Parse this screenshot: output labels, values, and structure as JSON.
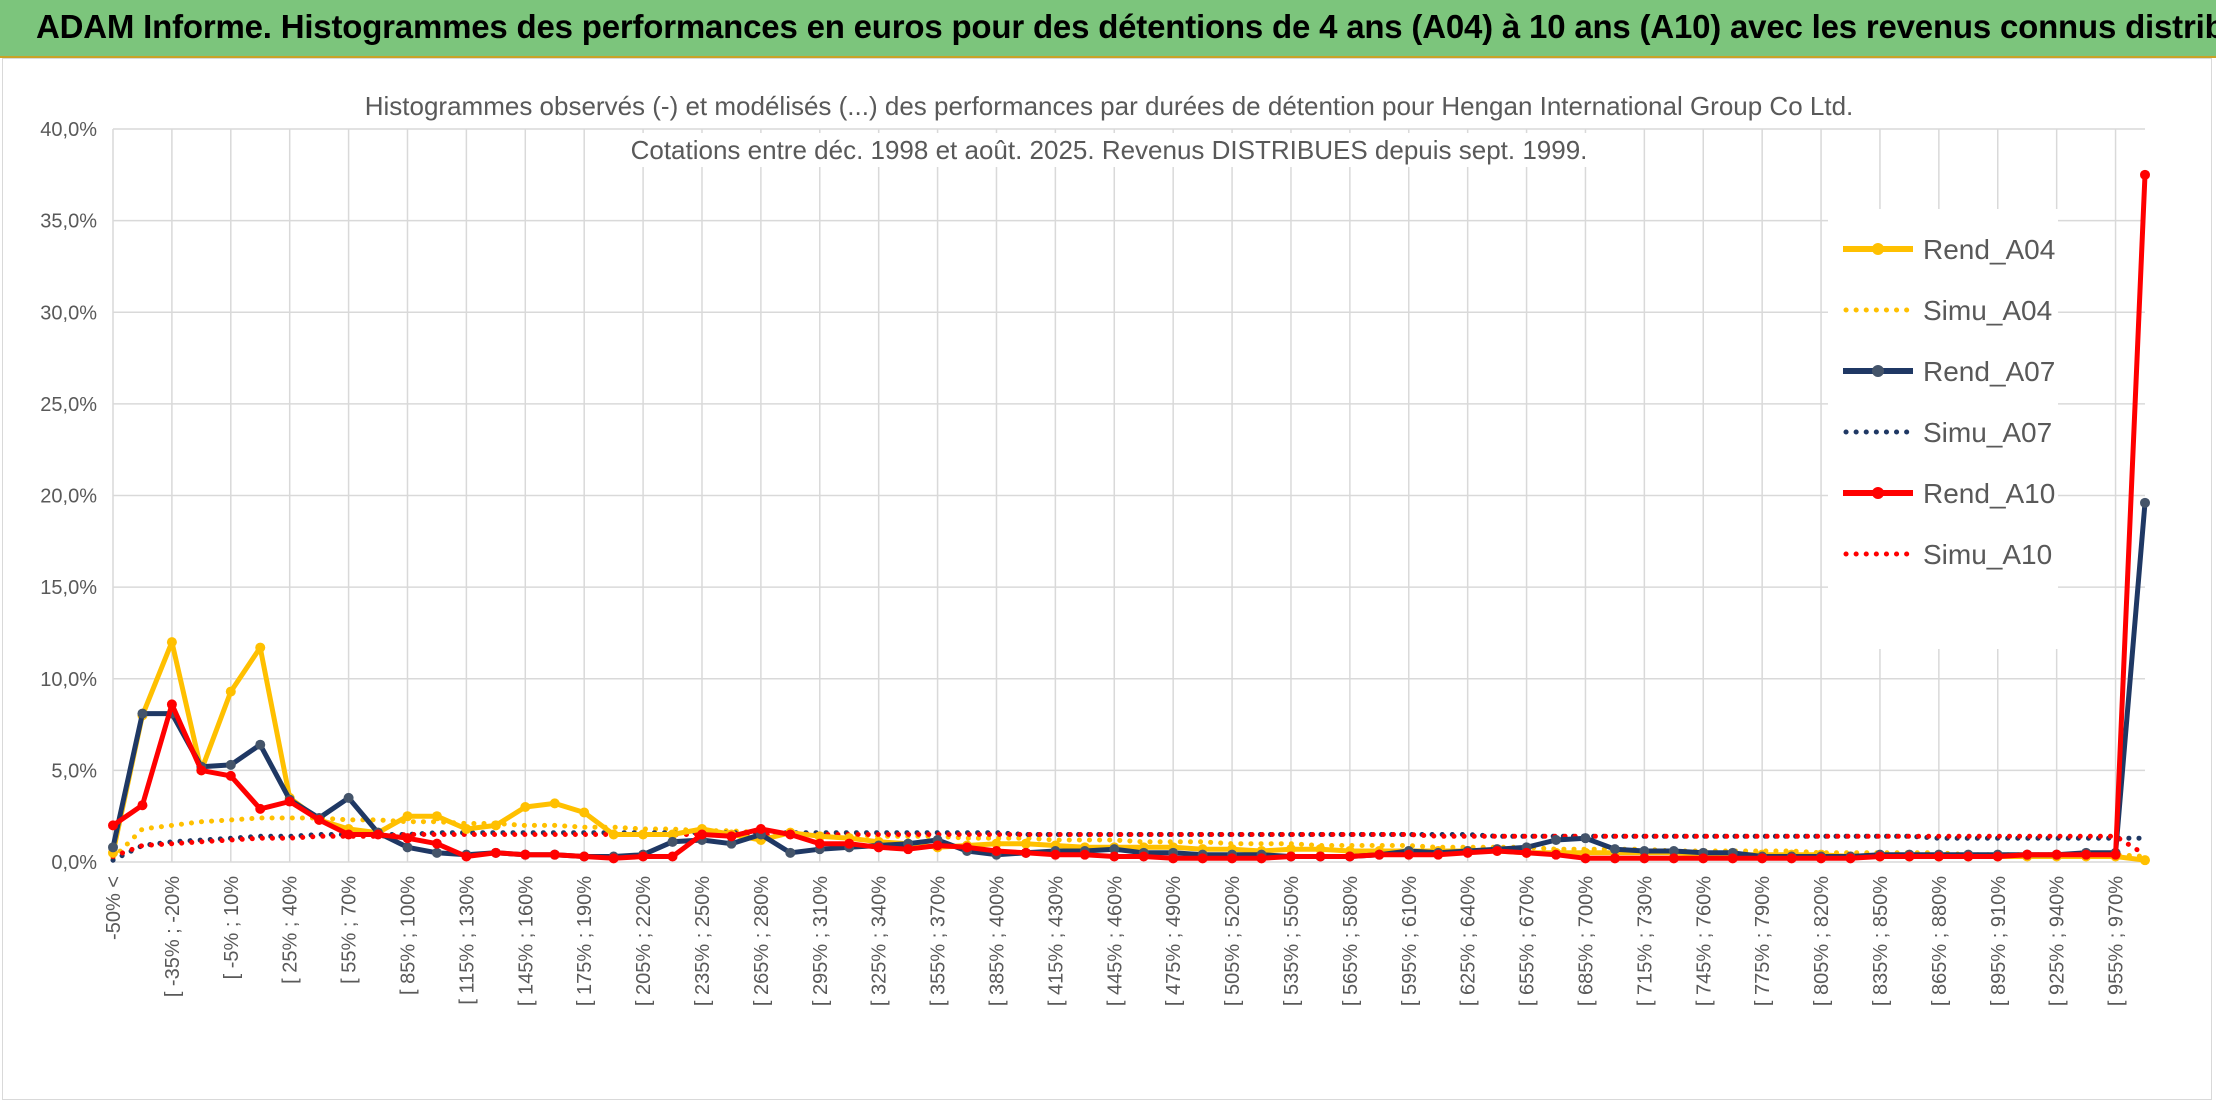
{
  "banner": {
    "title": "ADAM Informe. Histogrammes des performances en euros pour des détentions de 4 ans (A04) à 10 ans (A10) avec les revenus connus distribués"
  },
  "chart_data": {
    "type": "line",
    "title": "Histogrammes observés (-) et modélisés (...) des performances par durées de détention pour Hengan International Group Co Ltd.",
    "subtitle": "Cotations entre déc. 1998 et août. 2025. Revenus DISTRIBUES depuis sept. 1999.",
    "xlabel": "",
    "ylabel": "",
    "ylim": [
      0,
      40
    ],
    "yticks": [
      "0,0%",
      "5,0%",
      "10,0%",
      "15,0%",
      "20,0%",
      "25,0%",
      "30,0%",
      "35,0%",
      "40,0%"
    ],
    "x_tick_labels": [
      "-50% <",
      "[ -35% ; -20%",
      "[ -5% ; 10%",
      "[ 25% ; 40%",
      "[ 55% ; 70%",
      "[ 85% ; 100%",
      "[ 115% ; 130%",
      "[ 145% ; 160%",
      "[ 175% ; 190%",
      "[ 205% ; 220%",
      "[ 235% ; 250%",
      "[ 265% ; 280%",
      "[ 295% ; 310%",
      "[ 325% ; 340%",
      "[ 355% ; 370%",
      "[ 385% ; 400%",
      "[ 415% ; 430%",
      "[ 445% ; 460%",
      "[ 475% ; 490%",
      "[ 505% ; 520%",
      "[ 535% ; 550%",
      "[ 565% ; 580%",
      "[ 595% ; 610%",
      "[ 625% ; 640%",
      "[ 655% ; 670%",
      "[ 685% ; 700%",
      "[ 715% ; 730%",
      "[ 745% ; 760%",
      "[ 775% ; 790%",
      "[ 805% ; 820%",
      "[ 835% ; 850%",
      "[ 865% ; 880%",
      "[ 895% ; 910%",
      "[ 925% ; 940%",
      "[ 955% ; 970%"
    ],
    "categories_count": 70,
    "grid": true,
    "legend_position": "right",
    "series": [
      {
        "name": "Rend_A04",
        "color": "#FFC000",
        "style": "solid",
        "values": [
          0.5,
          8.0,
          12.0,
          5.0,
          9.3,
          11.7,
          3.5,
          2.3,
          1.8,
          1.6,
          2.5,
          2.5,
          1.8,
          2.0,
          3.0,
          3.2,
          2.7,
          1.5,
          1.5,
          1.5,
          1.8,
          1.5,
          1.2,
          1.6,
          1.4,
          1.3,
          1.1,
          1.0,
          0.8,
          0.9,
          1.0,
          1.0,
          0.9,
          0.8,
          0.8,
          0.8,
          0.8,
          0.7,
          0.7,
          0.6,
          0.7,
          0.7,
          0.6,
          0.6,
          0.6,
          0.6,
          0.6,
          0.6,
          0.5,
          0.5,
          0.5,
          0.5,
          0.5,
          0.5,
          0.4,
          0.4,
          0.4,
          0.4,
          0.4,
          0.3,
          0.3,
          0.3,
          0.3,
          0.3,
          0.3,
          0.3,
          0.3,
          0.3,
          0.3,
          0.1
        ]
      },
      {
        "name": "Simu_A04",
        "color": "#FFC000",
        "style": "dotted",
        "values": [
          0.2,
          1.8,
          2.0,
          2.2,
          2.3,
          2.4,
          2.4,
          2.4,
          2.3,
          2.3,
          2.2,
          2.2,
          2.1,
          2.1,
          2.0,
          2.0,
          1.9,
          1.9,
          1.8,
          1.8,
          1.7,
          1.7,
          1.6,
          1.6,
          1.5,
          1.5,
          1.4,
          1.4,
          1.4,
          1.3,
          1.3,
          1.3,
          1.2,
          1.2,
          1.2,
          1.1,
          1.1,
          1.1,
          1.0,
          1.0,
          1.0,
          0.9,
          0.9,
          0.9,
          0.9,
          0.8,
          0.8,
          0.8,
          0.8,
          0.7,
          0.7,
          0.7,
          0.7,
          0.6,
          0.6,
          0.6,
          0.6,
          0.6,
          0.5,
          0.5,
          0.5,
          0.5,
          0.5,
          0.4,
          0.4,
          0.4,
          0.4,
          0.4,
          0.4,
          0.3
        ]
      },
      {
        "name": "Rend_A07",
        "color": "#1F3864",
        "style": "solid",
        "values": [
          0.8,
          8.1,
          8.1,
          5.2,
          5.3,
          6.4,
          3.4,
          2.4,
          3.5,
          1.6,
          0.8,
          0.5,
          0.4,
          0.5,
          0.4,
          0.4,
          0.3,
          0.3,
          0.4,
          1.1,
          1.2,
          1.0,
          1.5,
          0.5,
          0.7,
          0.8,
          0.9,
          1.0,
          1.2,
          0.6,
          0.4,
          0.5,
          0.6,
          0.6,
          0.7,
          0.5,
          0.5,
          0.4,
          0.4,
          0.4,
          0.3,
          0.3,
          0.3,
          0.4,
          0.6,
          0.5,
          0.6,
          0.7,
          0.8,
          1.2,
          1.3,
          0.7,
          0.6,
          0.6,
          0.5,
          0.5,
          0.3,
          0.3,
          0.3,
          0.3,
          0.4,
          0.4,
          0.4,
          0.4,
          0.4,
          0.4,
          0.4,
          0.5,
          0.5,
          19.6
        ]
      },
      {
        "name": "Simu_A07",
        "color": "#1F3864",
        "style": "dotted",
        "values": [
          0.1,
          0.9,
          1.1,
          1.2,
          1.3,
          1.4,
          1.4,
          1.5,
          1.5,
          1.5,
          1.5,
          1.6,
          1.6,
          1.6,
          1.6,
          1.6,
          1.6,
          1.6,
          1.6,
          1.6,
          1.6,
          1.6,
          1.6,
          1.6,
          1.6,
          1.6,
          1.6,
          1.6,
          1.6,
          1.6,
          1.6,
          1.5,
          1.5,
          1.5,
          1.5,
          1.5,
          1.5,
          1.5,
          1.5,
          1.5,
          1.5,
          1.5,
          1.5,
          1.5,
          1.5,
          1.5,
          1.5,
          1.4,
          1.4,
          1.4,
          1.4,
          1.4,
          1.4,
          1.4,
          1.4,
          1.4,
          1.4,
          1.4,
          1.4,
          1.4,
          1.4,
          1.4,
          1.3,
          1.3,
          1.3,
          1.3,
          1.3,
          1.3,
          1.3,
          1.3
        ]
      },
      {
        "name": "Rend_A10",
        "color": "#FF0000",
        "style": "solid",
        "values": [
          2.0,
          3.1,
          8.6,
          5.0,
          4.7,
          2.9,
          3.3,
          2.3,
          1.5,
          1.5,
          1.3,
          1.0,
          0.3,
          0.5,
          0.4,
          0.4,
          0.3,
          0.2,
          0.3,
          0.3,
          1.5,
          1.4,
          1.8,
          1.5,
          1.0,
          1.0,
          0.8,
          0.7,
          0.9,
          0.8,
          0.6,
          0.5,
          0.4,
          0.4,
          0.3,
          0.3,
          0.2,
          0.2,
          0.2,
          0.2,
          0.3,
          0.3,
          0.3,
          0.4,
          0.4,
          0.4,
          0.5,
          0.6,
          0.5,
          0.4,
          0.2,
          0.2,
          0.2,
          0.2,
          0.2,
          0.2,
          0.2,
          0.2,
          0.2,
          0.2,
          0.3,
          0.3,
          0.3,
          0.3,
          0.3,
          0.4,
          0.4,
          0.4,
          0.4,
          37.5
        ]
      },
      {
        "name": "Simu_A10",
        "color": "#FF0000",
        "style": "dotted",
        "values": [
          0.3,
          0.9,
          1.0,
          1.1,
          1.2,
          1.3,
          1.3,
          1.4,
          1.4,
          1.4,
          1.5,
          1.5,
          1.5,
          1.5,
          1.5,
          1.5,
          1.5,
          1.5,
          1.5,
          1.5,
          1.5,
          1.5,
          1.5,
          1.5,
          1.5,
          1.5,
          1.5,
          1.5,
          1.5,
          1.5,
          1.5,
          1.5,
          1.5,
          1.5,
          1.5,
          1.5,
          1.5,
          1.5,
          1.5,
          1.5,
          1.5,
          1.5,
          1.5,
          1.5,
          1.5,
          1.4,
          1.4,
          1.4,
          1.4,
          1.4,
          1.4,
          1.4,
          1.4,
          1.4,
          1.4,
          1.4,
          1.4,
          1.4,
          1.4,
          1.4,
          1.4,
          1.4,
          1.4,
          1.4,
          1.4,
          1.4,
          1.4,
          1.4,
          1.4,
          0.4
        ]
      }
    ]
  }
}
